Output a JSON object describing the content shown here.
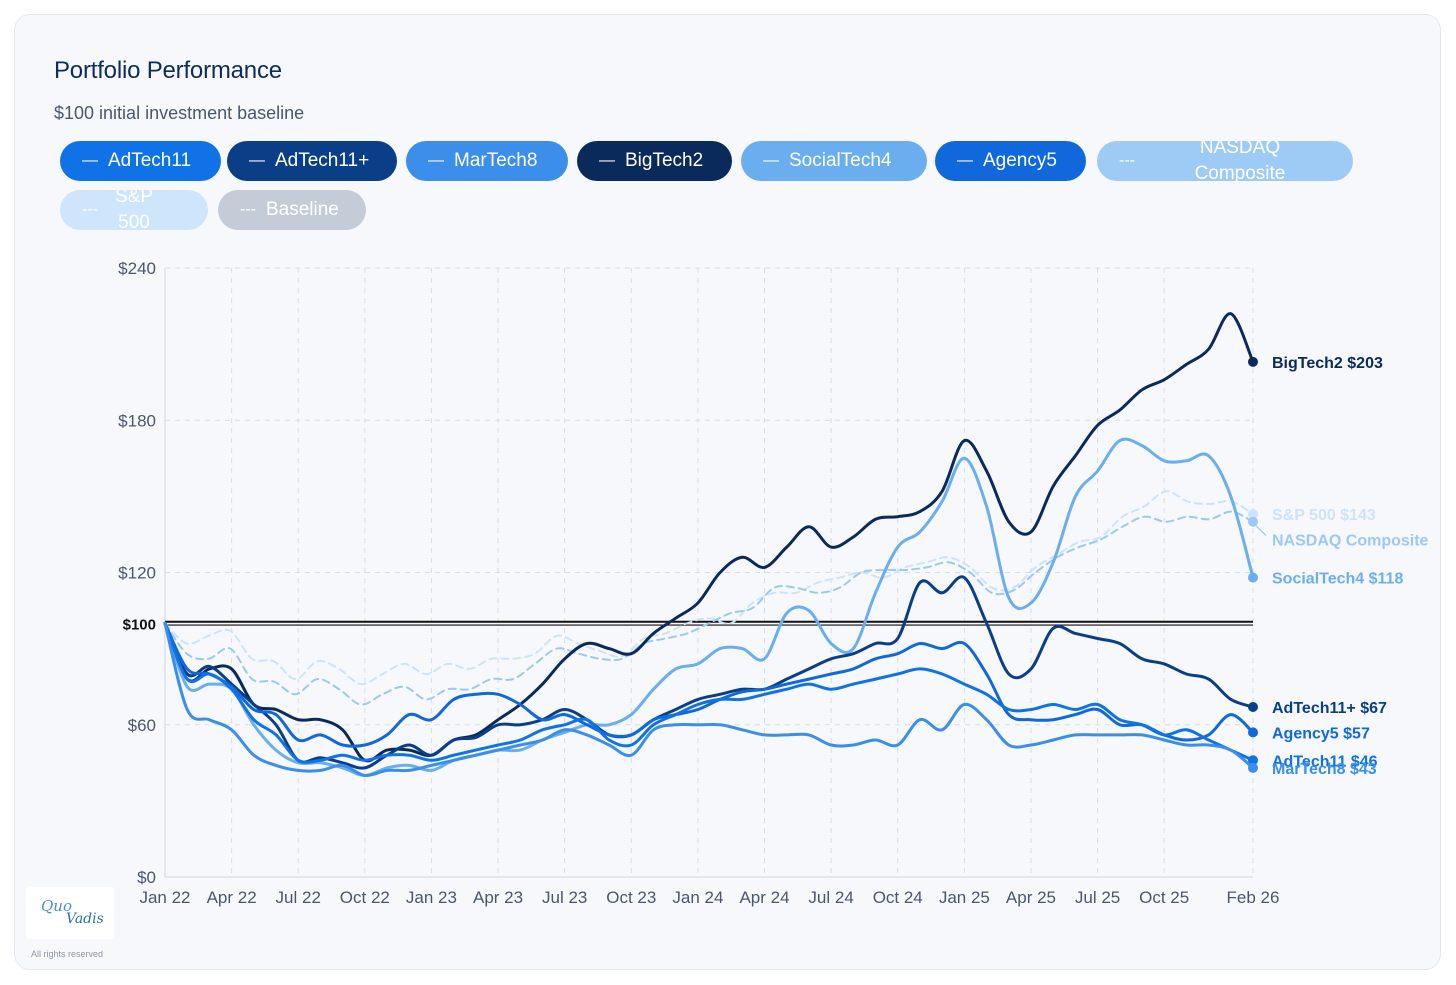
{
  "title": "Portfolio Performance",
  "subtitle": "$100 initial investment baseline",
  "legend": [
    {
      "label": "AdTech11",
      "marker": "—",
      "color": "#0f72e6",
      "text_color": "#ffffff"
    },
    {
      "label": "AdTech11+",
      "marker": "—",
      "color": "#0a3f88",
      "text_color": "#ffffff"
    },
    {
      "label": "MarTech8",
      "marker": "—",
      "color": "#3b8eea",
      "text_color": "#ffffff"
    },
    {
      "label": "BigTech2",
      "marker": "—",
      "color": "#0b2a5c",
      "text_color": "#ffffff"
    },
    {
      "label": "SocialTech4",
      "marker": "—",
      "color": "#6aaef0",
      "text_color": "#ffffff"
    },
    {
      "label": "Agency5",
      "marker": "—",
      "color": "#1168dc",
      "text_color": "#ffffff"
    },
    {
      "label": "NASDAQ Composite",
      "marker": "---",
      "color": "#9ecbf6",
      "text_color": "#ffffff"
    },
    {
      "label": "S&P 500",
      "marker": "---",
      "color": "#cfe5fb",
      "text_color": "#ffffff"
    },
    {
      "label": "Baseline",
      "marker": "---",
      "color": "#c4ccd8",
      "text_color": "#ffffff"
    }
  ],
  "footer": {
    "logo_text_1": "Quo",
    "logo_text_2": "Vadis",
    "rights": "All rights reserved"
  },
  "chart_data": {
    "type": "line",
    "ylim": [
      0,
      240
    ],
    "yticks": [
      {
        "value": 0,
        "label": "$0"
      },
      {
        "value": 60,
        "label": "$60"
      },
      {
        "value": 100,
        "label": "$100"
      },
      {
        "value": 120,
        "label": "$120"
      },
      {
        "value": 180,
        "label": "$180"
      },
      {
        "value": 240,
        "label": "$240"
      }
    ],
    "xlim": [
      0,
      49
    ],
    "xticks": [
      {
        "value": 0,
        "label": "Jan 22"
      },
      {
        "value": 3,
        "label": "Apr 22"
      },
      {
        "value": 6,
        "label": "Jul 22"
      },
      {
        "value": 9,
        "label": "Oct 22"
      },
      {
        "value": 12,
        "label": "Jan 23"
      },
      {
        "value": 15,
        "label": "Apr 23"
      },
      {
        "value": 18,
        "label": "Jul 23"
      },
      {
        "value": 21,
        "label": "Oct 23"
      },
      {
        "value": 24,
        "label": "Jan 24"
      },
      {
        "value": 27,
        "label": "Apr 24"
      },
      {
        "value": 30,
        "label": "Jul 24"
      },
      {
        "value": 33,
        "label": "Oct 24"
      },
      {
        "value": 36,
        "label": "Jan 25"
      },
      {
        "value": 39,
        "label": "Apr 25"
      },
      {
        "value": 42,
        "label": "Jul 25"
      },
      {
        "value": 45,
        "label": "Oct 25"
      },
      {
        "value": 49,
        "label": "Feb 26"
      }
    ],
    "baseline": 100,
    "series": [
      {
        "name": "S&P 500",
        "color": "#cde3fa",
        "dashed": true,
        "end_label": "S&P 500 $143",
        "label_value": 143,
        "values": [
          100,
          92,
          95,
          97,
          86,
          85,
          78,
          85,
          82,
          76,
          80,
          84,
          80,
          84,
          82,
          86,
          86,
          88,
          95,
          92,
          89,
          87,
          94,
          96,
          100,
          102,
          100,
          108,
          112,
          112,
          116,
          118,
          120,
          118,
          122,
          124,
          126,
          122,
          114,
          114,
          122,
          127,
          132,
          134,
          142,
          146,
          152,
          148,
          147,
          148,
          143
        ]
      },
      {
        "name": "NASDAQ Composite",
        "color": "#9cc8f5",
        "dashed": true,
        "end_label": "NASDAQ Composite",
        "label_value": 133,
        "values": [
          100,
          88,
          86,
          90,
          78,
          77,
          72,
          78,
          74,
          68,
          72,
          75,
          70,
          74,
          74,
          78,
          78,
          84,
          90,
          88,
          86,
          86,
          92,
          94,
          96,
          100,
          104,
          106,
          114,
          114,
          112,
          114,
          120,
          121,
          121,
          122,
          124,
          120,
          112,
          113,
          120,
          126,
          130,
          133,
          138,
          142,
          140,
          142,
          141,
          144,
          140
        ]
      },
      {
        "name": "BigTech2",
        "color": "#0b2a5c",
        "dashed": false,
        "end_label": "BigTech2 $203",
        "label_value": 203,
        "values": [
          100,
          78,
          82,
          82,
          68,
          66,
          62,
          62,
          58,
          46,
          50,
          50,
          48,
          54,
          56,
          62,
          68,
          76,
          86,
          92,
          90,
          88,
          96,
          102,
          108,
          120,
          126,
          122,
          130,
          138,
          130,
          134,
          141,
          142,
          144,
          152,
          172,
          160,
          140,
          136,
          154,
          166,
          178,
          184,
          192,
          196,
          202,
          208,
          222,
          203
        ]
      },
      {
        "name": "SocialTech4",
        "color": "#6aaef0",
        "dashed": false,
        "end_label": "SocialTech4 $118",
        "label_value": 118,
        "values": [
          100,
          75,
          76,
          74,
          60,
          50,
          45,
          45,
          43,
          40,
          43,
          44,
          42,
          46,
          48,
          50,
          50,
          54,
          57,
          60,
          60,
          64,
          74,
          82,
          84,
          90,
          90,
          86,
          104,
          105,
          92,
          90,
          112,
          130,
          136,
          148,
          165,
          146,
          110,
          108,
          124,
          150,
          160,
          172,
          170,
          164,
          164,
          166,
          150,
          118
        ]
      },
      {
        "name": "AdTech11+",
        "color": "#0a3f88",
        "dashed": false,
        "end_label": "AdTech11+ $67",
        "label_value": 67,
        "values": [
          100,
          80,
          83,
          76,
          68,
          60,
          46,
          47,
          45,
          43,
          48,
          52,
          48,
          54,
          55,
          60,
          60,
          62,
          66,
          62,
          56,
          56,
          62,
          66,
          70,
          72,
          74,
          74,
          78,
          82,
          86,
          88,
          92,
          94,
          116,
          112,
          118,
          100,
          80,
          82,
          98,
          96,
          94,
          92,
          86,
          84,
          80,
          78,
          70,
          67
        ]
      },
      {
        "name": "Agency5",
        "color": "#1168dc",
        "dashed": false,
        "end_label": "Agency5 $57",
        "label_value": 57,
        "values": [
          100,
          82,
          80,
          75,
          66,
          64,
          54,
          56,
          52,
          52,
          56,
          64,
          62,
          70,
          72,
          72,
          68,
          62,
          64,
          60,
          56,
          56,
          62,
          64,
          66,
          70,
          73,
          74,
          76,
          78,
          80,
          82,
          86,
          88,
          92,
          90,
          92,
          80,
          64,
          62,
          62,
          64,
          66,
          60,
          60,
          56,
          54,
          56,
          64,
          57
        ]
      },
      {
        "name": "AdTech11",
        "color": "#0f72e6",
        "dashed": false,
        "end_label": "AdTech11 $46",
        "label_value": 46,
        "values": [
          100,
          78,
          80,
          74,
          62,
          56,
          46,
          46,
          48,
          46,
          48,
          48,
          46,
          48,
          50,
          52,
          54,
          58,
          60,
          62,
          54,
          52,
          60,
          64,
          68,
          70,
          70,
          72,
          74,
          76,
          74,
          76,
          78,
          80,
          82,
          80,
          76,
          72,
          66,
          66,
          68,
          66,
          68,
          62,
          60,
          56,
          58,
          54,
          50,
          46
        ]
      },
      {
        "name": "MarTech8",
        "color": "#3b8eea",
        "dashed": false,
        "end_label": "MarTech8 $43",
        "label_value": 43,
        "values": [
          100,
          66,
          62,
          58,
          48,
          44,
          42,
          42,
          44,
          40,
          42,
          42,
          44,
          46,
          48,
          50,
          52,
          54,
          58,
          56,
          52,
          48,
          58,
          60,
          60,
          60,
          58,
          56,
          56,
          56,
          52,
          52,
          54,
          52,
          62,
          58,
          68,
          62,
          52,
          52,
          54,
          56,
          56,
          56,
          56,
          54,
          52,
          52,
          50,
          43
        ]
      }
    ]
  }
}
